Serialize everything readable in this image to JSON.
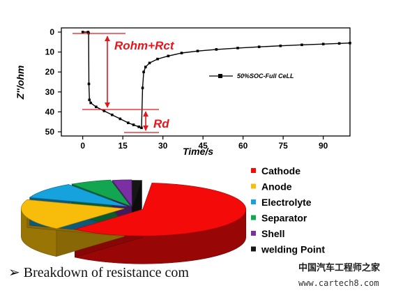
{
  "chart_data": [
    {
      "type": "line",
      "xlabel": "Time/s",
      "ylabel": "Z''/ohm",
      "xlim": [
        -8,
        100
      ],
      "ylim": [
        0,
        50
      ],
      "y_inverted": true,
      "xticks": [
        "0",
        "15",
        "30",
        "45",
        "60",
        "75",
        "90"
      ],
      "yticks": [
        "0",
        "10",
        "20",
        "30",
        "40",
        "50"
      ],
      "legend": "top-right",
      "series": [
        {
          "name": "50%SOC-Full CeLL",
          "color": "#000000",
          "x": [
            0,
            2,
            2.2,
            2.3,
            2.5,
            3,
            5,
            8,
            11,
            14,
            17,
            19,
            21,
            22,
            22.4,
            22.8,
            23.5,
            25,
            28,
            32,
            37,
            43,
            50,
            58,
            66,
            74,
            82,
            90,
            96,
            100
          ],
          "y": [
            0,
            0,
            0.5,
            26,
            34,
            35.5,
            37.5,
            39.5,
            41.5,
            43.5,
            45.5,
            46.5,
            47.5,
            48,
            28,
            20,
            17.5,
            15.5,
            13.5,
            12,
            10.5,
            9.5,
            8.7,
            8,
            7.4,
            6.9,
            6.4,
            6,
            5.7,
            5.5
          ]
        }
      ],
      "annotations": [
        "Rohm+Rct",
        "Rd"
      ],
      "annotation_color": "#e8141a"
    },
    {
      "type": "pie",
      "categories": [
        "Cathode",
        "Anode",
        "Electrolyte",
        "Separator",
        "Shell",
        "welding Point"
      ],
      "values": [
        60,
        19,
        10,
        6.5,
        3,
        1.5
      ],
      "colors": [
        "#f50a0a",
        "#f7bd0a",
        "#16a2dd",
        "#12a651",
        "#7a30a3",
        "#161616"
      ],
      "legend": "right"
    }
  ],
  "caption": "➢ Breakdown  of resistance  com",
  "watermark": {
    "cn": "中国汽车工程师之家",
    "url": "www.cartech8.com"
  }
}
